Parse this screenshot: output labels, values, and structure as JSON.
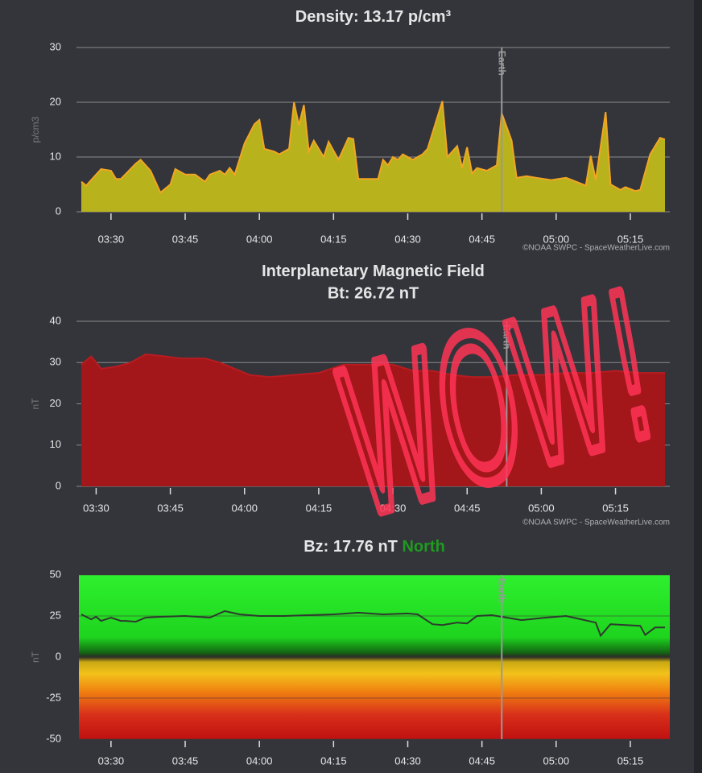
{
  "chart_data": [
    {
      "type": "area",
      "title": "Density: 13.17 p/cm³",
      "y_label": "p/cm3",
      "color": "#b8b21c",
      "line_color": "#f2a623",
      "x": [
        "03:24",
        "03:25",
        "03:27",
        "03:28",
        "03:30",
        "03:31",
        "03:32",
        "03:35",
        "03:36",
        "03:38",
        "03:40",
        "03:42",
        "03:43",
        "03:45",
        "03:47",
        "03:49",
        "03:50",
        "03:52",
        "03:53",
        "03:54",
        "03:55",
        "03:57",
        "03:59",
        "04:00",
        "04:01",
        "04:03",
        "04:04",
        "04:06",
        "04:07",
        "04:08",
        "04:09",
        "04:10",
        "04:11",
        "04:13",
        "04:14",
        "04:16",
        "04:18",
        "04:19",
        "04:20",
        "04:22",
        "04:24",
        "04:25",
        "04:26",
        "04:27",
        "04:28",
        "04:29",
        "04:31",
        "04:33",
        "04:34",
        "04:37",
        "04:38",
        "04:40",
        "04:41",
        "04:42",
        "04:43",
        "04:44",
        "04:46",
        "04:48",
        "04:49",
        "04:51",
        "04:52",
        "04:54",
        "04:56",
        "04:59",
        "05:02",
        "05:04",
        "05:06",
        "05:07",
        "05:08",
        "05:10",
        "05:11",
        "05:13",
        "05:14",
        "05:16",
        "05:17",
        "05:19",
        "05:21",
        "05:22"
      ],
      "values": [
        5.5,
        4.8,
        6.8,
        7.8,
        7.5,
        6,
        6,
        8.8,
        9.5,
        7.5,
        3.5,
        5,
        7.8,
        6.8,
        6.8,
        5.5,
        6.8,
        7.5,
        6.8,
        8,
        6.8,
        12.5,
        16,
        16.8,
        11.5,
        11,
        10.5,
        11.5,
        20,
        15.8,
        19.5,
        11,
        13,
        10,
        12.8,
        9.5,
        13.5,
        13.3,
        6,
        6,
        6,
        9.5,
        8.5,
        10,
        9.5,
        10.5,
        9.5,
        10.5,
        11.5,
        20.2,
        10,
        12,
        8,
        11.8,
        7,
        8,
        7.5,
        8.5,
        18,
        13,
        6.2,
        6.5,
        6.2,
        5.8,
        6.2,
        5.5,
        4.8,
        10.2,
        5.8,
        18.2,
        5,
        4,
        4.5,
        3.8,
        4,
        10.5,
        13.5,
        13.2
      ],
      "xlim": [
        "03:24",
        "05:22"
      ],
      "xticks": [
        "03:30",
        "03:45",
        "04:00",
        "04:15",
        "04:30",
        "04:45",
        "05:00",
        "05:15"
      ],
      "ylim": [
        0,
        30
      ],
      "yticks": [
        0,
        10,
        20,
        30
      ],
      "grid": true,
      "annotations": [
        {
          "text": "Earth",
          "x": "04:49"
        }
      ],
      "credit": "©NOAA SWPC - SpaceWeatherLive.com"
    },
    {
      "type": "area",
      "title": "Interplanetary Magnetic Field",
      "subtitle": "Bt: 26.72 nT",
      "y_label": "nT",
      "color": "#a3161a",
      "line_color": "#b81c20",
      "x": [
        "03:27",
        "03:29",
        "03:31",
        "03:34",
        "03:37",
        "03:40",
        "03:44",
        "03:47",
        "03:52",
        "03:55",
        "03:58",
        "04:01",
        "04:05",
        "04:10",
        "04:15",
        "04:20",
        "04:25",
        "04:30",
        "04:34",
        "04:38",
        "04:42",
        "04:46",
        "04:50",
        "04:55",
        "05:00",
        "05:05",
        "05:10",
        "05:15",
        "05:20",
        "05:25"
      ],
      "values": [
        29.5,
        31.5,
        28.5,
        29,
        30,
        32,
        31.5,
        31,
        31,
        30,
        28.5,
        27,
        26.5,
        27,
        27.5,
        29.5,
        29.5,
        29.5,
        28,
        28,
        27,
        26.5,
        26.5,
        27,
        27,
        27.5,
        27.5,
        28,
        27.5,
        27.5
      ],
      "xlim": [
        "03:27",
        "05:25"
      ],
      "xticks": [
        "03:30",
        "03:45",
        "04:00",
        "04:15",
        "04:30",
        "04:45",
        "05:00",
        "05:15"
      ],
      "ylim": [
        0,
        40
      ],
      "yticks": [
        0,
        10,
        20,
        30,
        40
      ],
      "grid": true,
      "annotations": [
        {
          "text": "Earth",
          "x": "04:53"
        }
      ],
      "credit": "©NOAA SWPC - SpaceWeatherLive.com"
    },
    {
      "type": "line",
      "title": "Bz: 17.76 nT",
      "status": "North",
      "status_color": "#1f9a1f",
      "y_label": "nT",
      "line_color": "#2e3a2e",
      "x": [
        "03:24",
        "03:26",
        "03:27",
        "03:28",
        "03:30",
        "03:32",
        "03:33",
        "03:35",
        "03:37",
        "03:40",
        "03:45",
        "03:50",
        "03:53",
        "03:56",
        "04:00",
        "04:05",
        "04:10",
        "04:15",
        "04:20",
        "04:25",
        "04:30",
        "04:32",
        "04:35",
        "04:37",
        "04:40",
        "04:42",
        "04:44",
        "04:47",
        "04:50",
        "04:53",
        "04:58",
        "05:02",
        "05:05",
        "05:08",
        "05:09",
        "05:11",
        "05:14",
        "05:17",
        "05:18",
        "05:20",
        "05:22"
      ],
      "values": [
        26,
        23,
        24.5,
        22,
        24,
        22,
        22,
        21.5,
        24,
        24.5,
        25,
        24,
        28,
        26,
        25,
        25,
        25.5,
        26,
        27,
        26,
        26.5,
        26,
        20,
        19.5,
        21,
        20.5,
        25,
        25.5,
        24,
        22.5,
        24,
        25,
        23,
        21,
        13,
        20,
        19.5,
        19,
        13.5,
        18,
        18
      ],
      "xlim": [
        "03:24",
        "05:22"
      ],
      "xticks": [
        "03:30",
        "03:45",
        "04:00",
        "04:15",
        "04:30",
        "04:45",
        "05:00",
        "05:15"
      ],
      "ylim": [
        -50,
        50
      ],
      "yticks": [
        -50,
        -25,
        0,
        25,
        50
      ],
      "grid": true,
      "annotations": [
        {
          "text": "Earth",
          "x": "04:49"
        }
      ]
    }
  ],
  "overlay": "WOW!"
}
